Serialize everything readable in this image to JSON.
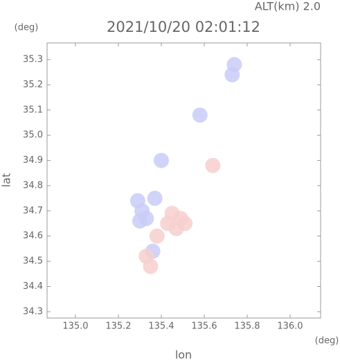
{
  "chart_data": {
    "type": "scatter",
    "annotation": "ALT(km) 2.0",
    "title": "2021/10/20 02:01:12",
    "y_unit": "(deg)",
    "x_unit": "(deg)",
    "ylabel": "lat",
    "xlabel": "lon",
    "xlim": [
      134.868,
      136.142
    ],
    "ylim": [
      34.275,
      35.366
    ],
    "xticks": [
      {
        "value": 135.0,
        "label": "135.0"
      },
      135.2,
      135.4,
      135.6,
      135.8,
      {
        "value": 136.0,
        "label": "136.0"
      }
    ],
    "yticks": [
      34.3,
      34.4,
      34.5,
      34.6,
      34.7,
      34.8,
      34.9,
      {
        "value": 35.0,
        "label": "35.0"
      },
      35.1,
      35.2,
      35.3
    ],
    "series": [
      {
        "color": "#c9cdf7",
        "x": [
          135.73,
          135.74,
          135.58,
          135.29,
          135.31,
          135.33,
          135.3,
          135.37,
          135.4,
          135.36
        ],
        "y": [
          35.24,
          35.28,
          35.08,
          34.74,
          34.7,
          34.67,
          34.66,
          34.75,
          34.9,
          34.54
        ]
      },
      {
        "color": "#f7cfcf",
        "x": [
          135.45,
          135.49,
          135.43,
          135.47,
          135.51,
          135.64,
          135.35,
          135.38,
          135.33
        ],
        "y": [
          34.69,
          34.67,
          34.65,
          34.63,
          34.65,
          34.88,
          34.48,
          34.6,
          34.52
        ]
      }
    ]
  }
}
